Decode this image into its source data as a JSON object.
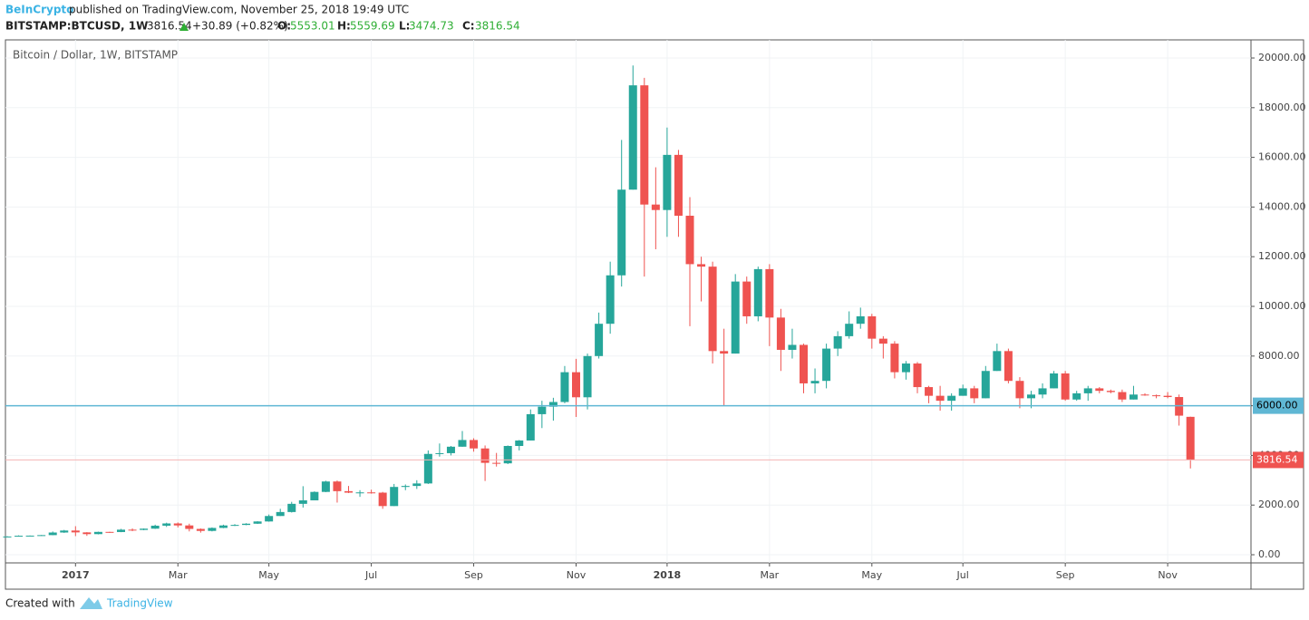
{
  "header": {
    "publisher": "BeInCrypto",
    "published": "published on TradingView.com, November 25, 2018 19:49 UTC",
    "symbol": "BITSTAMP:BTCUSD, 1W",
    "change": "+30.89 (+0.82%)",
    "ohlc_labels": [
      "O:",
      "H:",
      "L:",
      "C:"
    ]
  },
  "footer": {
    "created_with": "Created with",
    "brand": "TradingView"
  },
  "chart_data": {
    "type": "candlestick",
    "title": "Bitcoin / Dollar, 1W, BITSTAMP",
    "up_color": "#26a69a",
    "down_color": "#ef5350",
    "grid": true,
    "ylim": [
      -328,
      20730
    ],
    "yticks": [
      {
        "value": 0,
        "label": "0.00"
      },
      {
        "value": 2000,
        "label": "2000.00"
      },
      {
        "value": 4000,
        "label": "4000.00"
      },
      {
        "value": 6000,
        "label": "6000.00"
      },
      {
        "value": 8000,
        "label": "8000.00"
      },
      {
        "value": 10000,
        "label": "10000.00"
      },
      {
        "value": 12000,
        "label": "12000.00"
      },
      {
        "value": 14000,
        "label": "14000.00"
      },
      {
        "value": 16000,
        "label": "16000.00"
      },
      {
        "value": 18000,
        "label": "18000.00"
      },
      {
        "value": 20000,
        "label": "20000.00"
      }
    ],
    "level": {
      "value": 6000,
      "label": "6000.00",
      "color": "#5fb7d4"
    },
    "categories": [
      null,
      null,
      null,
      null,
      null,
      null,
      "2017",
      null,
      null,
      null,
      null,
      null,
      null,
      null,
      null,
      "Mar",
      null,
      null,
      null,
      null,
      null,
      null,
      null,
      "May",
      null,
      null,
      null,
      null,
      null,
      null,
      null,
      null,
      "Jul",
      null,
      null,
      null,
      null,
      null,
      null,
      null,
      null,
      "Sep",
      null,
      null,
      null,
      null,
      null,
      null,
      null,
      null,
      "Nov",
      null,
      null,
      null,
      null,
      null,
      null,
      null,
      "2018",
      null,
      null,
      null,
      null,
      null,
      null,
      null,
      null,
      "Mar",
      null,
      null,
      null,
      null,
      null,
      null,
      null,
      null,
      "May",
      null,
      null,
      null,
      null,
      null,
      null,
      null,
      "Jul",
      null,
      null,
      null,
      null,
      null,
      null,
      null,
      null,
      "Sep",
      null,
      null,
      null,
      null,
      null,
      null,
      null,
      null,
      "Nov",
      null,
      null
    ],
    "open": [
      730,
      735,
      765,
      770,
      790,
      895,
      975,
      900,
      830,
      920,
      915,
      1010,
      1000,
      1050,
      1170,
      1260,
      1180,
      1040,
      960,
      1080,
      1180,
      1200,
      1250,
      1340,
      1560,
      1720,
      2050,
      2190,
      2530,
      2950,
      2560,
      2500,
      2510,
      2500,
      1960,
      2730,
      2770,
      2870,
      4060,
      4090,
      4350,
      4620,
      4280,
      3700,
      3680,
      4380,
      4600,
      5660,
      5960,
      6150,
      7350,
      6340,
      8000,
      9300,
      11250,
      14700,
      18900,
      14100,
      13880,
      16100,
      13650,
      11700,
      11600,
      8200,
      8100,
      11000,
      9600,
      11500,
      9550,
      8250,
      8450,
      6900,
      7000,
      8300,
      8800,
      9300,
      9600,
      8700,
      8500,
      7350,
      7700,
      6750,
      6400,
      6200,
      6400,
      6700,
      6300,
      7400,
      8200,
      7000,
      6300,
      6450,
      6700,
      7300,
      6250,
      6500,
      6700,
      6600,
      6550,
      6250,
      6450,
      6420,
      6400,
      6350,
      5553.01
    ],
    "high": [
      750,
      780,
      775,
      795,
      935,
      1000,
      1150,
      910,
      930,
      925,
      1040,
      1060,
      1060,
      1210,
      1290,
      1300,
      1250,
      1060,
      1100,
      1210,
      1230,
      1270,
      1350,
      1620,
      1850,
      2130,
      2760,
      2550,
      2980,
      2990,
      2770,
      2600,
      2620,
      2530,
      2850,
      2830,
      3000,
      4200,
      4480,
      4380,
      4980,
      4690,
      4400,
      4100,
      4400,
      4620,
      5850,
      6200,
      6320,
      7600,
      7890,
      8100,
      9750,
      11800,
      16700,
      19700,
      19200,
      15600,
      17200,
      16300,
      14400,
      12000,
      11800,
      9100,
      11300,
      11200,
      11600,
      11700,
      9900,
      9100,
      8500,
      7500,
      8500,
      9000,
      9800,
      9950,
      9700,
      8800,
      8600,
      7800,
      7760,
      6800,
      6800,
      6500,
      6850,
      6800,
      7600,
      8500,
      8300,
      7150,
      6600,
      6900,
      7400,
      7400,
      6600,
      6800,
      6750,
      6650,
      6650,
      6800,
      6500,
      6450,
      6550,
      6450,
      5559.69
    ],
    "low": [
      725,
      730,
      755,
      760,
      785,
      880,
      750,
      760,
      820,
      880,
      910,
      950,
      990,
      1040,
      1120,
      1100,
      940,
      890,
      940,
      1070,
      1160,
      1190,
      1240,
      1330,
      1560,
      1700,
      1900,
      2190,
      2520,
      2100,
      2480,
      2330,
      2460,
      1850,
      1960,
      2600,
      2650,
      2850,
      3950,
      4000,
      4350,
      4150,
      2970,
      3550,
      3650,
      4200,
      4600,
      5100,
      5400,
      6100,
      5550,
      5850,
      7900,
      8900,
      10800,
      14700,
      11200,
      12300,
      12800,
      12800,
      9200,
      10200,
      7700,
      6000,
      8100,
      9300,
      9400,
      8400,
      7400,
      7900,
      6500,
      6500,
      6700,
      8000,
      8700,
      9100,
      8300,
      7900,
      7100,
      7050,
      6500,
      6100,
      5800,
      5800,
      6400,
      6100,
      6300,
      7400,
      6900,
      5900,
      5900,
      6300,
      6700,
      6200,
      6200,
      6200,
      6500,
      6500,
      6150,
      6250,
      6400,
      6300,
      6300,
      5200,
      3474.73
    ],
    "close": [
      735,
      765,
      770,
      790,
      895,
      975,
      900,
      830,
      920,
      915,
      1010,
      1000,
      1050,
      1170,
      1260,
      1180,
      1040,
      960,
      1080,
      1180,
      1200,
      1250,
      1340,
      1560,
      1720,
      2050,
      2190,
      2530,
      2950,
      2560,
      2500,
      2510,
      2500,
      1960,
      2730,
      2770,
      2870,
      4060,
      4090,
      4350,
      4620,
      4280,
      3700,
      3680,
      4380,
      4600,
      5660,
      5960,
      6150,
      7350,
      6340,
      8000,
      9300,
      11250,
      14700,
      18900,
      14100,
      13880,
      16100,
      13650,
      11700,
      11600,
      8200,
      8100,
      11000,
      9600,
      11500,
      9550,
      8250,
      8450,
      6900,
      7000,
      8300,
      8800,
      9300,
      9600,
      8700,
      8500,
      7350,
      7700,
      6750,
      6400,
      6200,
      6400,
      6700,
      6300,
      7400,
      8200,
      7000,
      6300,
      6450,
      6700,
      7300,
      6250,
      6500,
      6700,
      6600,
      6550,
      6250,
      6450,
      6420,
      6400,
      6350,
      5600,
      3816.54
    ]
  }
}
